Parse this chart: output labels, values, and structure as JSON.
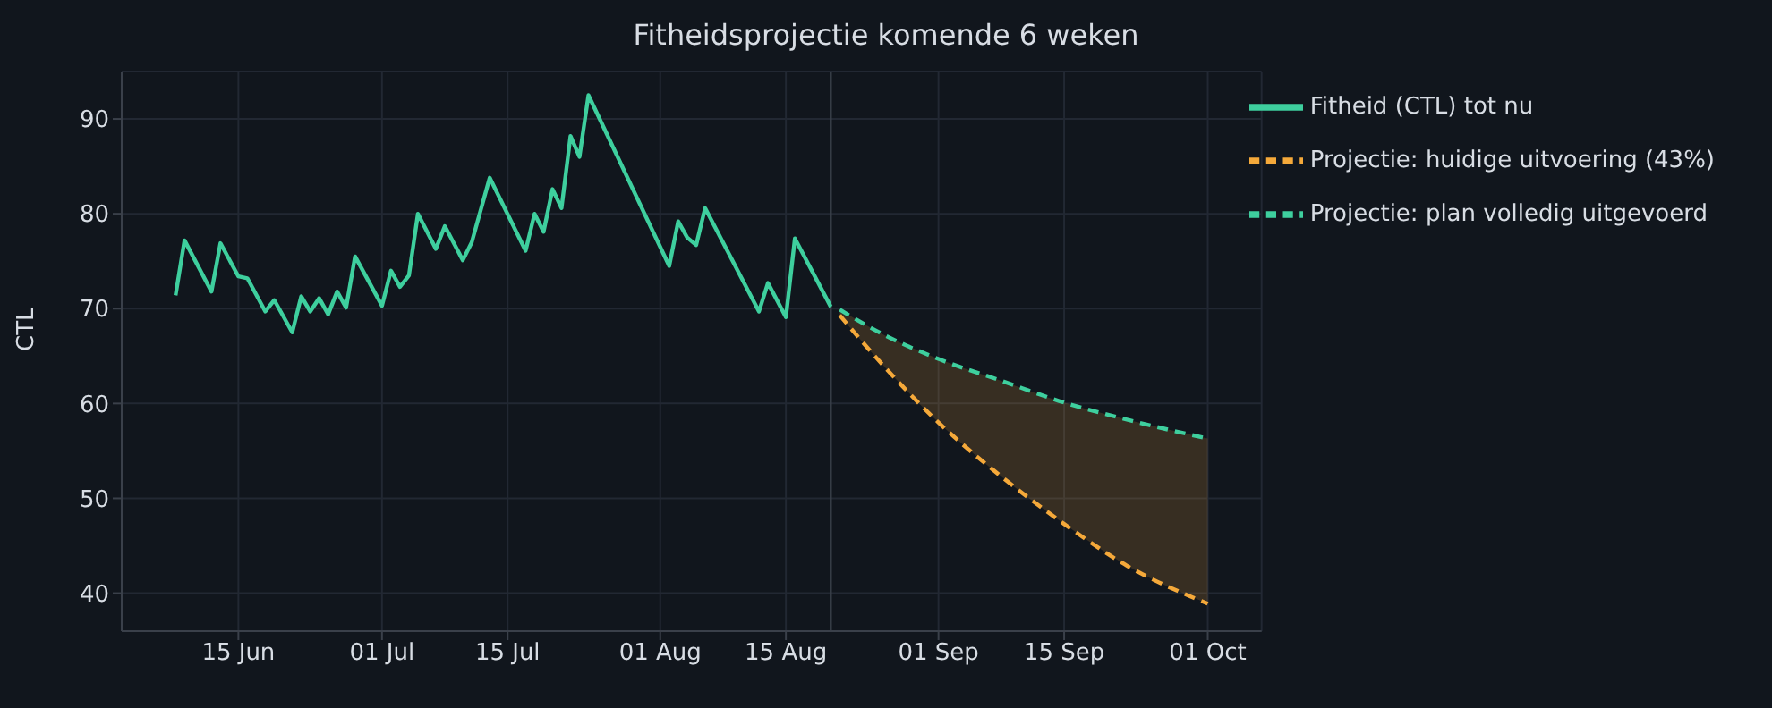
{
  "chart_data": {
    "type": "line",
    "title": "Fitheidsprojectie komende 6 weken",
    "ylabel": "CTL",
    "xlim": [
      "--06-02",
      "--10-07"
    ],
    "ylim": [
      36,
      95
    ],
    "yticks": [
      40,
      50,
      60,
      70,
      80,
      90
    ],
    "xticks": [
      {
        "value": "--06-15",
        "label": "15 Jun"
      },
      {
        "value": "--07-01",
        "label": "01 Jul"
      },
      {
        "value": "--07-15",
        "label": "15 Jul"
      },
      {
        "value": "--08-01",
        "label": "01 Aug"
      },
      {
        "value": "--08-15",
        "label": "15 Aug"
      },
      {
        "value": "--09-01",
        "label": "01 Sep"
      },
      {
        "value": "--09-15",
        "label": "15 Sep"
      },
      {
        "value": "--10-01",
        "label": "01 Oct"
      }
    ],
    "grid": true,
    "legend": "top right",
    "marker": "none",
    "ref_lines": [
      {
        "axis": "x",
        "value": "--08-20",
        "color": "#3a404a"
      }
    ],
    "series": [
      {
        "name": "Fitheid (CTL) tot nu",
        "color": "#3ecf9e",
        "line_style": "solid",
        "x": [
          "--06-08",
          "--06-09",
          "--06-12",
          "--06-13",
          "--06-15",
          "--06-16",
          "--06-18",
          "--06-19",
          "--06-21",
          "--06-22",
          "--06-23",
          "--06-24",
          "--06-25",
          "--06-26",
          "--06-27",
          "--06-28",
          "--07-01",
          "--07-02",
          "--07-03",
          "--07-04",
          "--07-05",
          "--07-07",
          "--07-08",
          "--07-10",
          "--07-11",
          "--07-13",
          "--07-17",
          "--07-18",
          "--07-19",
          "--07-20",
          "--07-21",
          "--07-22",
          "--07-23",
          "--07-24",
          "--08-02",
          "--08-03",
          "--08-04",
          "--08-05",
          "--08-06",
          "--08-12",
          "--08-13",
          "--08-15",
          "--08-16",
          "--08-20"
        ],
        "values": [
          71.4,
          77.2,
          71.8,
          76.9,
          73.4,
          73.2,
          69.7,
          70.9,
          67.5,
          71.3,
          69.7,
          71.1,
          69.4,
          71.8,
          70.1,
          75.5,
          70.3,
          74.0,
          72.3,
          73.5,
          80.0,
          76.3,
          78.7,
          75.1,
          77.0,
          83.8,
          76.1,
          80.0,
          78.1,
          82.6,
          80.6,
          88.2,
          86.0,
          92.5,
          74.5,
          79.2,
          77.5,
          76.7,
          80.6,
          69.7,
          72.7,
          69.1,
          77.4,
          70.2
        ]
      },
      {
        "name": "Projectie: plan volledig uitgevoerd",
        "color": "#3ecf9e",
        "line_style": "dashed",
        "x": [
          "--08-21",
          "--08-25",
          "--09-01",
          "--09-08",
          "--09-15",
          "--09-22",
          "--10-01"
        ],
        "values": [
          69.9,
          67.7,
          64.7,
          62.4,
          60.1,
          58.3,
          56.3
        ]
      },
      {
        "name": "Projectie: huidige uitvoering (43%)",
        "color": "#f5a93a",
        "line_style": "dashed",
        "x": [
          "--08-21",
          "--08-25",
          "--09-01",
          "--09-08",
          "--09-15",
          "--09-22",
          "--10-01"
        ],
        "values": [
          69.3,
          64.9,
          58.0,
          52.3,
          47.3,
          42.9,
          38.9
        ],
        "lower": [
          69.3,
          64.9,
          58.0,
          52.3,
          47.3,
          42.9,
          38.9
        ],
        "upper": [
          69.9,
          67.7,
          64.7,
          62.4,
          60.1,
          58.3,
          56.3
        ]
      }
    ]
  }
}
